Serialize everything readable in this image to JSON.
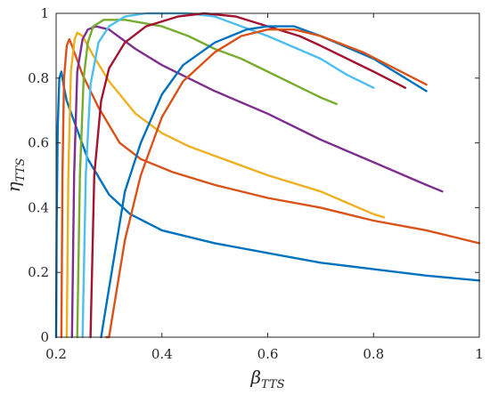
{
  "chart_data": {
    "type": "line",
    "title": "",
    "xlabel": {
      "main": "β",
      "sub": "TTS"
    },
    "ylabel": {
      "main": "η",
      "sub": "TTS"
    },
    "xlim": [
      0.2,
      1.0
    ],
    "ylim": [
      0,
      1.0
    ],
    "xticks": [
      "0.2",
      "0.4",
      "0.6",
      "0.8",
      "1"
    ],
    "xtick_values": [
      0.2,
      0.4,
      0.6,
      0.8,
      1.0
    ],
    "yticks": [
      "0",
      "0.2",
      "0.4",
      "0.6",
      "0.8",
      "1"
    ],
    "ytick_values": [
      0,
      0.2,
      0.4,
      0.6,
      0.8,
      1.0
    ],
    "grid": false,
    "legend": "none",
    "series": [
      {
        "color": "#0072BD",
        "points": [
          [
            0.2,
            0.0
          ],
          [
            0.201,
            0.35
          ],
          [
            0.203,
            0.65
          ],
          [
            0.206,
            0.8
          ],
          [
            0.21,
            0.82
          ],
          [
            0.215,
            0.77
          ],
          [
            0.22,
            0.73
          ],
          [
            0.24,
            0.64
          ],
          [
            0.26,
            0.55
          ],
          [
            0.3,
            0.44
          ],
          [
            0.34,
            0.38
          ],
          [
            0.4,
            0.33
          ],
          [
            0.5,
            0.29
          ],
          [
            0.6,
            0.26
          ],
          [
            0.7,
            0.23
          ],
          [
            0.8,
            0.21
          ],
          [
            0.9,
            0.19
          ],
          [
            1.0,
            0.175
          ]
        ]
      },
      {
        "color": "#D95319",
        "points": [
          [
            0.21,
            0.0
          ],
          [
            0.212,
            0.5
          ],
          [
            0.215,
            0.8
          ],
          [
            0.22,
            0.9
          ],
          [
            0.225,
            0.92
          ],
          [
            0.23,
            0.9
          ],
          [
            0.25,
            0.81
          ],
          [
            0.28,
            0.71
          ],
          [
            0.32,
            0.6
          ],
          [
            0.36,
            0.55
          ],
          [
            0.42,
            0.51
          ],
          [
            0.5,
            0.47
          ],
          [
            0.6,
            0.43
          ],
          [
            0.7,
            0.4
          ],
          [
            0.8,
            0.36
          ],
          [
            0.9,
            0.33
          ],
          [
            1.0,
            0.29
          ]
        ]
      },
      {
        "color": "#EDB120",
        "points": [
          [
            0.22,
            0.0
          ],
          [
            0.223,
            0.5
          ],
          [
            0.228,
            0.82
          ],
          [
            0.235,
            0.92
          ],
          [
            0.24,
            0.94
          ],
          [
            0.25,
            0.93
          ],
          [
            0.27,
            0.87
          ],
          [
            0.3,
            0.79
          ],
          [
            0.35,
            0.69
          ],
          [
            0.4,
            0.63
          ],
          [
            0.45,
            0.59
          ],
          [
            0.5,
            0.56
          ],
          [
            0.6,
            0.5
          ],
          [
            0.7,
            0.45
          ],
          [
            0.8,
            0.38
          ],
          [
            0.82,
            0.37
          ]
        ]
      },
      {
        "color": "#7E2F8E",
        "points": [
          [
            0.23,
            0.0
          ],
          [
            0.234,
            0.5
          ],
          [
            0.24,
            0.82
          ],
          [
            0.25,
            0.92
          ],
          [
            0.26,
            0.95
          ],
          [
            0.275,
            0.96
          ],
          [
            0.3,
            0.95
          ],
          [
            0.35,
            0.89
          ],
          [
            0.4,
            0.84
          ],
          [
            0.5,
            0.76
          ],
          [
            0.6,
            0.69
          ],
          [
            0.7,
            0.61
          ],
          [
            0.8,
            0.54
          ],
          [
            0.9,
            0.47
          ],
          [
            0.93,
            0.45
          ]
        ]
      },
      {
        "color": "#77AC30",
        "points": [
          [
            0.24,
            0.0
          ],
          [
            0.245,
            0.5
          ],
          [
            0.252,
            0.8
          ],
          [
            0.26,
            0.91
          ],
          [
            0.27,
            0.96
          ],
          [
            0.29,
            0.98
          ],
          [
            0.33,
            0.98
          ],
          [
            0.4,
            0.96
          ],
          [
            0.45,
            0.93
          ],
          [
            0.5,
            0.89
          ],
          [
            0.55,
            0.86
          ],
          [
            0.6,
            0.82
          ],
          [
            0.65,
            0.78
          ],
          [
            0.7,
            0.74
          ],
          [
            0.73,
            0.72
          ]
        ]
      },
      {
        "color": "#4DBEEE",
        "points": [
          [
            0.25,
            0.0
          ],
          [
            0.256,
            0.5
          ],
          [
            0.265,
            0.78
          ],
          [
            0.28,
            0.91
          ],
          [
            0.3,
            0.96
          ],
          [
            0.33,
            0.99
          ],
          [
            0.37,
            1.0
          ],
          [
            0.45,
            1.0
          ],
          [
            0.5,
            0.99
          ],
          [
            0.55,
            0.96
          ],
          [
            0.6,
            0.93
          ],
          [
            0.7,
            0.86
          ],
          [
            0.75,
            0.81
          ],
          [
            0.8,
            0.77
          ]
        ]
      },
      {
        "color": "#A2142F",
        "points": [
          [
            0.265,
            0.0
          ],
          [
            0.272,
            0.5
          ],
          [
            0.285,
            0.73
          ],
          [
            0.3,
            0.83
          ],
          [
            0.33,
            0.91
          ],
          [
            0.37,
            0.96
          ],
          [
            0.43,
            0.99
          ],
          [
            0.48,
            1.0
          ],
          [
            0.54,
            0.99
          ],
          [
            0.6,
            0.96
          ],
          [
            0.66,
            0.93
          ],
          [
            0.7,
            0.9
          ],
          [
            0.8,
            0.82
          ],
          [
            0.86,
            0.77
          ]
        ]
      },
      {
        "color": "#0072BD",
        "points": [
          [
            0.285,
            0.0
          ],
          [
            0.29,
            0.05
          ],
          [
            0.31,
            0.25
          ],
          [
            0.33,
            0.45
          ],
          [
            0.36,
            0.6
          ],
          [
            0.4,
            0.75
          ],
          [
            0.44,
            0.84
          ],
          [
            0.5,
            0.91
          ],
          [
            0.56,
            0.95
          ],
          [
            0.6,
            0.96
          ],
          [
            0.65,
            0.96
          ],
          [
            0.7,
            0.93
          ],
          [
            0.8,
            0.86
          ],
          [
            0.9,
            0.76
          ]
        ]
      },
      {
        "color": "#D95319",
        "points": [
          [
            0.295,
            0.0
          ],
          [
            0.3,
            0.0
          ],
          [
            0.31,
            0.1
          ],
          [
            0.33,
            0.3
          ],
          [
            0.36,
            0.5
          ],
          [
            0.4,
            0.68
          ],
          [
            0.44,
            0.79
          ],
          [
            0.5,
            0.88
          ],
          [
            0.55,
            0.93
          ],
          [
            0.6,
            0.95
          ],
          [
            0.65,
            0.95
          ],
          [
            0.7,
            0.93
          ],
          [
            0.78,
            0.88
          ],
          [
            0.9,
            0.78
          ]
        ]
      }
    ]
  }
}
